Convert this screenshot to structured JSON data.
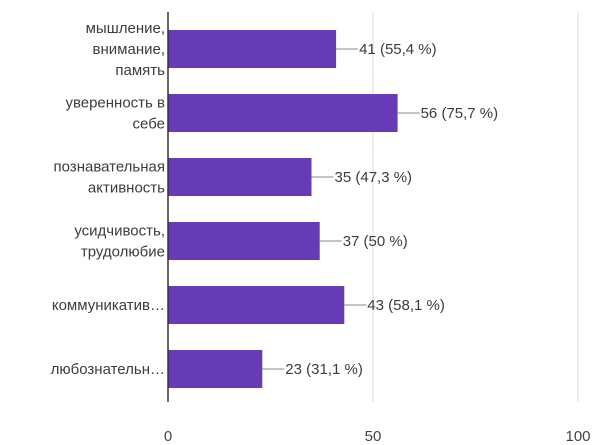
{
  "chart_data": {
    "type": "bar",
    "orientation": "horizontal",
    "categories": [
      [
        "мышление,",
        "внимание,",
        "память"
      ],
      [
        "уверенность в",
        "себе"
      ],
      [
        "познавательная",
        "активность"
      ],
      [
        "усидчивость,",
        "трудолюбие"
      ],
      [
        "коммуникатив…"
      ],
      [
        "любознательн…"
      ]
    ],
    "values": [
      41,
      56,
      35,
      37,
      43,
      23
    ],
    "value_labels": [
      "41 (55,4 %)",
      "56 (75,7 %)",
      "35 (47,3 %)",
      "37 (50 %)",
      "43 (58,1 %)",
      "23 (31,1 %)"
    ],
    "xlim": [
      0,
      100
    ],
    "xticks": [
      0,
      50,
      100
    ],
    "xtick_labels": [
      "0",
      "50",
      "100"
    ],
    "grid": true,
    "bar_color": "#673ab7",
    "grid_color": "#dddddd",
    "axis_color": "#333333"
  }
}
